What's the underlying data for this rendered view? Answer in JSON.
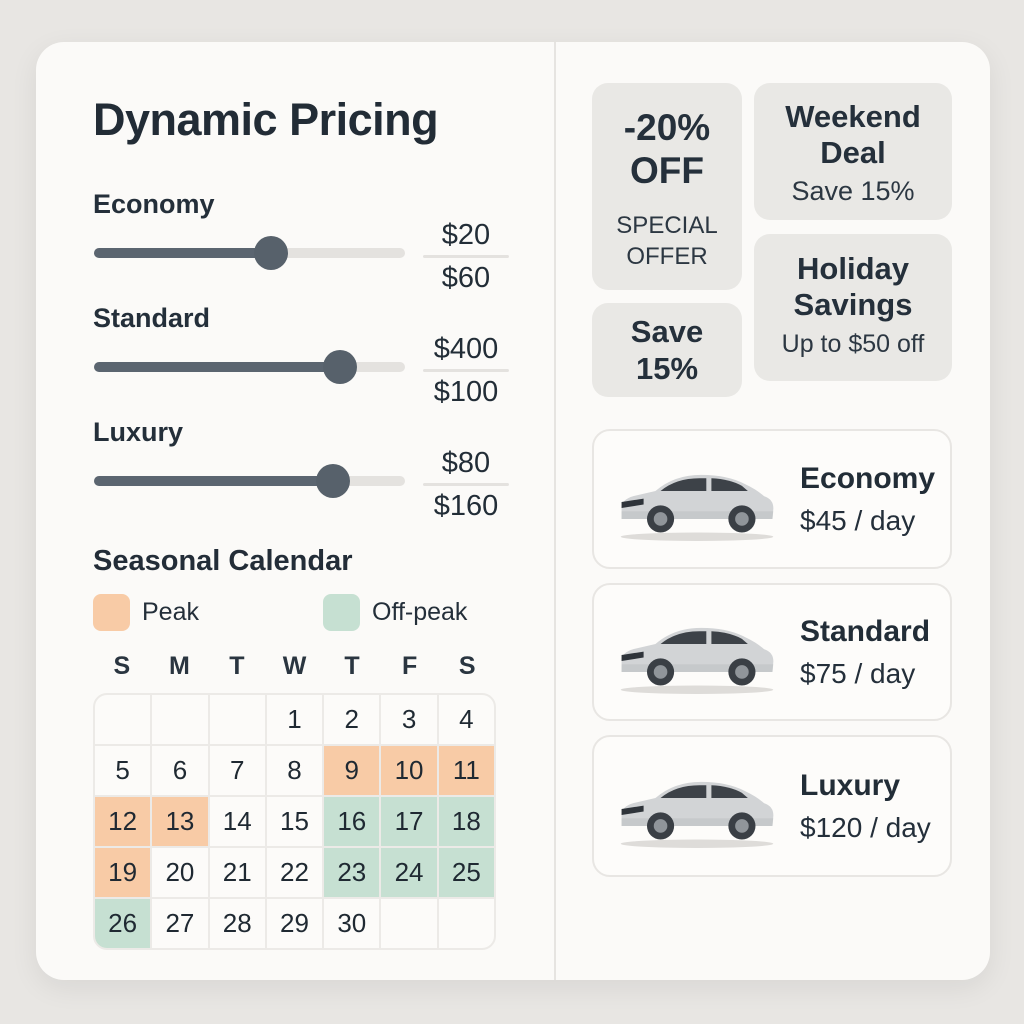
{
  "page": {
    "title": "Dynamic Pricing"
  },
  "colors": {
    "peak": "#f8cba6",
    "off_peak": "#c6e0d2",
    "slider_fill": "#5b6570",
    "panel_bg": "#fbfaf8",
    "badge_bg": "#e9e8e5",
    "text_dark": "#232d38"
  },
  "sliders": [
    {
      "label": "Economy",
      "current": "$20",
      "max": "$60",
      "percent": 57
    },
    {
      "label": "Standard",
      "current": "$400",
      "max": "$100",
      "percent": 79
    },
    {
      "label": "Luxury",
      "current": "$80",
      "max": "$160",
      "percent": 77
    }
  ],
  "calendar": {
    "title": "Seasonal Calendar",
    "legend": [
      {
        "label": "Peak",
        "color": "#f8cba6"
      },
      {
        "label": "Off-peak",
        "color": "#c6e0d2"
      }
    ],
    "day_headers": [
      "S",
      "M",
      "T",
      "W",
      "T",
      "F",
      "S"
    ],
    "weeks": [
      [
        {
          "d": "",
          "t": ""
        },
        {
          "d": "",
          "t": ""
        },
        {
          "d": "",
          "t": ""
        },
        {
          "d": "1",
          "t": ""
        },
        {
          "d": "2",
          "t": ""
        },
        {
          "d": "3",
          "t": ""
        },
        {
          "d": "4",
          "t": ""
        }
      ],
      [
        {
          "d": "5",
          "t": ""
        },
        {
          "d": "6",
          "t": ""
        },
        {
          "d": "7",
          "t": ""
        },
        {
          "d": "8",
          "t": ""
        },
        {
          "d": "9",
          "t": "peak"
        },
        {
          "d": "10",
          "t": "peak"
        },
        {
          "d": "11",
          "t": "peak"
        }
      ],
      [
        {
          "d": "12",
          "t": "peak"
        },
        {
          "d": "13",
          "t": "peak"
        },
        {
          "d": "14",
          "t": ""
        },
        {
          "d": "15",
          "t": ""
        },
        {
          "d": "16",
          "t": "off"
        },
        {
          "d": "17",
          "t": "off"
        },
        {
          "d": "18",
          "t": "off"
        }
      ],
      [
        {
          "d": "19",
          "t": "peak"
        },
        {
          "d": "20",
          "t": ""
        },
        {
          "d": "21",
          "t": ""
        },
        {
          "d": "22",
          "t": ""
        },
        {
          "d": "23",
          "t": "off"
        },
        {
          "d": "24",
          "t": "off"
        },
        {
          "d": "25",
          "t": "off"
        }
      ],
      [
        {
          "d": "26",
          "t": "off"
        },
        {
          "d": "27",
          "t": ""
        },
        {
          "d": "28",
          "t": ""
        },
        {
          "d": "29",
          "t": ""
        },
        {
          "d": "30",
          "t": ""
        },
        {
          "d": "",
          "t": ""
        },
        {
          "d": "",
          "t": ""
        }
      ]
    ]
  },
  "badges": [
    {
      "title": "-20%\nOFF",
      "subtitle": "SPECIAL\nOFFER"
    },
    {
      "title": "Weekend\nDeal",
      "subtitle": "Save 15%"
    },
    {
      "title": "Save\n15%",
      "subtitle": ""
    },
    {
      "title": "Holiday\nSavings",
      "subtitle": "Up to $50 off"
    }
  ],
  "vehicle_cards": [
    {
      "name": "Economy",
      "price": "$45 / day"
    },
    {
      "name": "Standard",
      "price": "$75 / day"
    },
    {
      "name": "Luxury",
      "price": "$120 / day"
    }
  ]
}
